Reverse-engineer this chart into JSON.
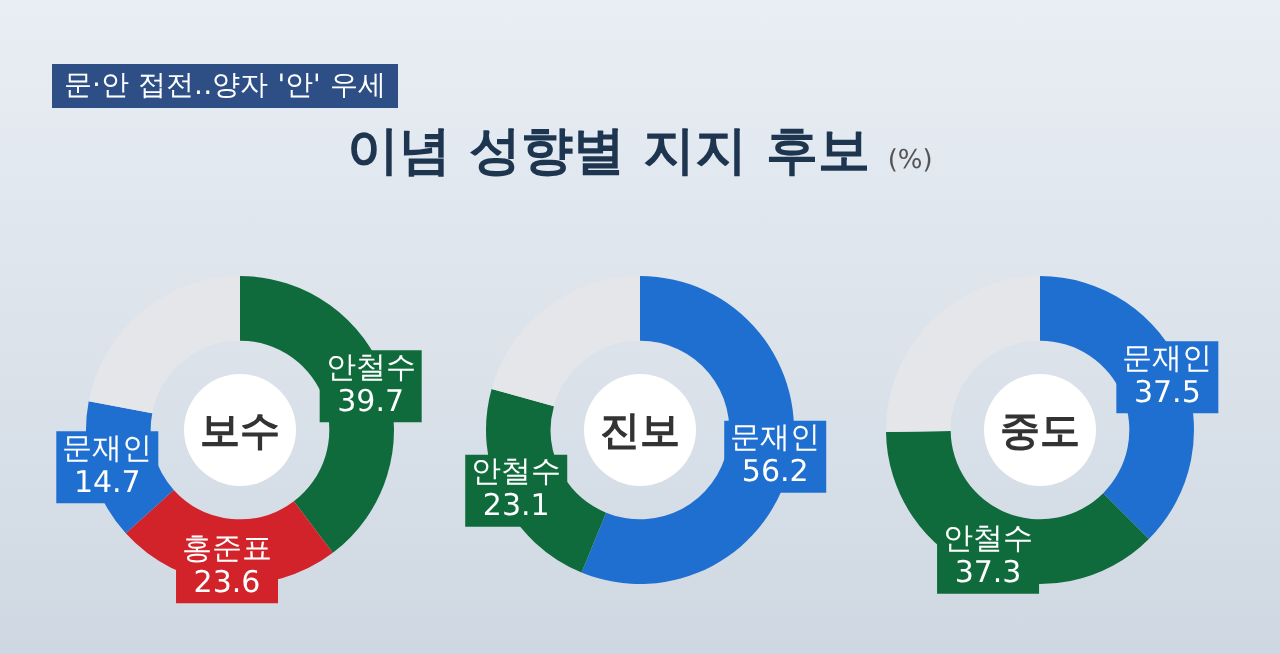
{
  "chart_data": [
    {
      "type": "other",
      "title": "이념 성향별 지지 후보",
      "subtitle": "(%)",
      "annotations": [
        "문·안 접전‥양자 '안' 우세"
      ]
    },
    {
      "type": "donut",
      "title": "보수",
      "categories": [
        "안철수",
        "홍준표",
        "문재인",
        null
      ],
      "values": [
        39.7,
        23.6,
        14.7,
        22.0
      ],
      "colors": [
        "#0f6b3c",
        "#d2232a",
        "#1f6fd1",
        "#e4e6e9"
      ],
      "value_labels": [
        "39.7",
        "23.6",
        "14.7",
        null
      ],
      "legend": false
    },
    {
      "type": "donut",
      "title": "진보",
      "categories": [
        "문재인",
        "안철수",
        null
      ],
      "values": [
        56.2,
        23.1,
        20.7
      ],
      "colors": [
        "#1f6fd1",
        "#0f6b3c",
        "#e4e6e9"
      ],
      "value_labels": [
        "56.2",
        "23.1",
        null
      ],
      "legend": false
    },
    {
      "type": "donut",
      "title": "중도",
      "categories": [
        "문재인",
        "안철수",
        null
      ],
      "values": [
        37.5,
        37.3,
        25.2
      ],
      "colors": [
        "#1f6fd1",
        "#0f6b3c",
        "#e4e6e9"
      ],
      "value_labels": [
        "37.5",
        "37.3",
        null
      ],
      "legend": false
    }
  ]
}
